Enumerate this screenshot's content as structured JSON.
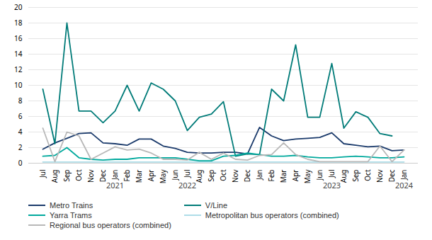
{
  "chart_data": {
    "type": "line",
    "categories": [
      "Jul",
      "Aug",
      "Sep",
      "Oct",
      "Nov",
      "Dec",
      "Jan",
      "Feb",
      "Mar",
      "Apr",
      "May",
      "Jun",
      "Jul",
      "Aug",
      "Sep",
      "Oct",
      "Nov",
      "Dec",
      "Jan",
      "Feb",
      "Mar",
      "Apr",
      "May",
      "Jun",
      "Jul",
      "Aug",
      "Sep",
      "Oct",
      "Nov",
      "Dec",
      "Jan"
    ],
    "series": [
      {
        "name": "Metro Trains",
        "color": "#1a3a6b",
        "values": [
          1.8,
          2.6,
          3.2,
          3.8,
          3.9,
          2.6,
          2.5,
          2.3,
          3.1,
          3.1,
          2.2,
          1.9,
          1.4,
          1.3,
          1.3,
          1.4,
          1.4,
          1.2,
          4.6,
          3.5,
          2.9,
          3.1,
          3.2,
          3.3,
          3.9,
          2.5,
          2.3,
          2.1,
          2.2,
          1.6,
          1.7
        ]
      },
      {
        "name": "V/Line",
        "color": "#007b78",
        "values": [
          9.5,
          2.5,
          18.0,
          6.7,
          6.7,
          5.2,
          6.7,
          10.0,
          6.7,
          10.3,
          9.5,
          8.0,
          4.2,
          5.9,
          6.3,
          7.9,
          0.9,
          1.2,
          1.1,
          9.5,
          8.0,
          15.2,
          5.9,
          5.9,
          12.8,
          4.5,
          6.6,
          5.9,
          3.8,
          3.5,
          null
        ]
      },
      {
        "name": "Yarra Trams",
        "color": "#00a99d",
        "values": [
          0.9,
          1.0,
          2.0,
          0.7,
          0.5,
          0.4,
          0.5,
          0.5,
          0.7,
          0.7,
          0.7,
          0.7,
          0.5,
          0.3,
          0.3,
          0.9,
          1.0,
          1.3,
          1.1,
          0.9,
          0.9,
          1.0,
          0.8,
          0.7,
          0.7,
          0.8,
          0.9,
          0.8,
          0.7,
          0.7,
          0.8
        ]
      },
      {
        "name": "Metropolitan bus operators (combined)",
        "color": "#aedde8",
        "values": [
          0.15,
          0.15,
          0.15,
          0.15,
          0.15,
          0.15,
          0.15,
          0.15,
          0.15,
          0.15,
          0.15,
          0.15,
          0.15,
          0.15,
          0.15,
          0.15,
          0.15,
          0.15,
          0.15,
          0.15,
          0.15,
          0.15,
          0.15,
          0.15,
          0.15,
          0.15,
          0.15,
          0.15,
          0.15,
          0.15,
          0.15
        ]
      },
      {
        "name": "Regional bus operators (combined)",
        "color": "#b8b8b8",
        "values": [
          4.5,
          0.2,
          4.0,
          3.5,
          0.5,
          1.3,
          2.1,
          1.7,
          1.8,
          1.3,
          0.5,
          0.5,
          0.4,
          1.4,
          0.5,
          1.3,
          0.5,
          0.4,
          1.0,
          1.1,
          2.6,
          1.1,
          0.5,
          0.2,
          0.2,
          0.2,
          0.2,
          0.2,
          2.2,
          0.2,
          1.7
        ]
      }
    ],
    "annotations": [
      {
        "text": "2021",
        "x": 6
      },
      {
        "text": "2022",
        "x": 12
      },
      {
        "text": "2023",
        "x": 24
      },
      {
        "text": "2024",
        "x": 30
      }
    ],
    "ylim": [
      0,
      20
    ],
    "yticks": [
      0,
      2,
      4,
      6,
      8,
      10,
      12,
      14,
      16,
      18,
      20
    ],
    "grid": true,
    "legend": "bottom"
  }
}
